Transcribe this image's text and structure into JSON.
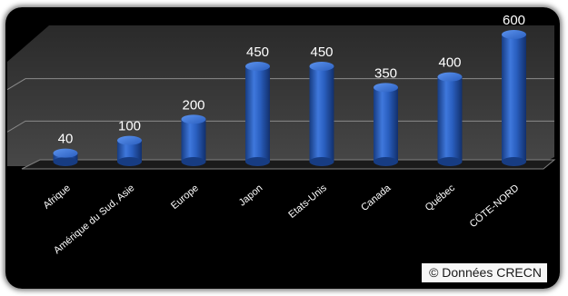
{
  "colors": {
    "background": "#000000",
    "wall": "#3a3a3a",
    "bar": "#2f64c4",
    "text": "#ffffff"
  },
  "chart_data": {
    "type": "bar",
    "style": "3d-cylinder",
    "categories": [
      "Afrique",
      "Amérique du Sud, Asie",
      "Europe",
      "Japon",
      "Etats-Unis",
      "Canada",
      "Québec",
      "CÔTE-NORD"
    ],
    "values": [
      40,
      100,
      200,
      450,
      450,
      350,
      400,
      600
    ],
    "value_labels": [
      "40",
      "100",
      "200",
      "450",
      "450",
      "350",
      "400",
      "600"
    ],
    "ylim": [
      0,
      600
    ],
    "grid": true,
    "title": "",
    "xlabel": "",
    "ylabel": ""
  },
  "credit": "© Données CRECN"
}
